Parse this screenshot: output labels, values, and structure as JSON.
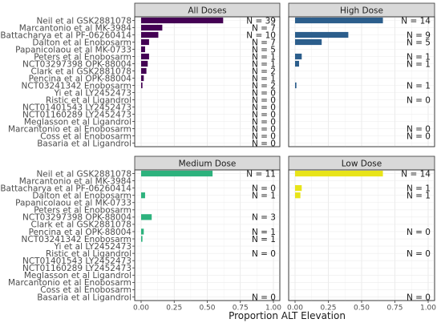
{
  "chart_data": {
    "type": "bar",
    "orientation": "horizontal",
    "xlabel": "Proportion ALT Elevation",
    "xlim": [
      0,
      1
    ],
    "xticks": [
      "0.00",
      "0.25",
      "0.50",
      "0.75",
      "1.00"
    ],
    "grid": true,
    "categories": [
      "Neil et al GSK2881078",
      "Marcantonio et al MK-3984",
      "Battacharya et al PF-06260414",
      "Dalton et al Enobosarm",
      "Papanicolaou et al MK-0733",
      "Peters et al Enobosarm",
      "NCT03297398 OPK-88004",
      "Clark et al GSK2881078",
      "Pencina et al OPK-88004",
      "NCT03241342 Enobosarm",
      "Yi et al LY2452473",
      "Ristic et al Ligandrol",
      "NCT01401543 LY2452473",
      "NCT01160289 LY2452473",
      "Meglasson et al Ligandrol",
      "Marcantonio et al Enobosarm",
      "Coss et al Enobosarm",
      "Basaria et al Ligandrol"
    ],
    "panels": [
      {
        "name": "All Doses",
        "color": "#440154",
        "values": [
          0.62,
          0.16,
          0.13,
          0.06,
          0.03,
          0.06,
          0.05,
          0.04,
          0.02,
          0.01,
          0,
          0,
          0,
          0,
          0,
          0,
          0,
          0
        ],
        "n_labels": [
          "N = 39",
          "N = 7",
          "N = 10",
          "N = 7",
          "N = 5",
          "N = 1",
          "N = 1",
          "N = 2",
          "N = 1",
          "N = 2",
          "N = 0",
          "N = 0",
          "N = 0",
          "N = 0",
          "N = 0",
          "N = 0",
          "N = 0",
          "N = 0"
        ]
      },
      {
        "name": "High Dose",
        "color": "#2c5e8c",
        "values": [
          0.66,
          null,
          0.4,
          0.2,
          null,
          0.05,
          0.03,
          null,
          null,
          0.01,
          null,
          0,
          null,
          null,
          null,
          0,
          0,
          null
        ],
        "n_labels": [
          "N = 14",
          "",
          "N = 9",
          "N = 5",
          "",
          "N = 1",
          "N = 1",
          "",
          "",
          "N = 1",
          "",
          "N = 0",
          "",
          "",
          "",
          "N = 0",
          "N = 0",
          ""
        ]
      },
      {
        "name": "Medium Dose",
        "color": "#2db27d",
        "values": [
          0.54,
          null,
          0,
          0.03,
          null,
          null,
          0.08,
          null,
          0.02,
          0.01,
          null,
          0,
          null,
          null,
          null,
          null,
          null,
          0
        ],
        "n_labels": [
          "N = 11",
          "",
          "N = 0",
          "N = 1",
          "",
          "",
          "N = 3",
          "",
          "N = 1",
          "N = 1",
          "",
          "N = 0",
          "",
          "",
          "",
          "",
          "",
          "N = 0"
        ]
      },
      {
        "name": "Low Dose",
        "color": "#e8e419",
        "values": [
          0.66,
          null,
          0.05,
          0.04,
          null,
          null,
          null,
          null,
          0,
          null,
          null,
          0,
          null,
          null,
          null,
          null,
          null,
          0
        ],
        "n_labels": [
          "N = 14",
          "",
          "N = 1",
          "N = 1",
          "",
          "",
          "",
          "",
          "N = 0",
          "",
          "",
          "N = 0",
          "",
          "",
          "",
          "",
          "",
          "N = 0"
        ]
      }
    ]
  }
}
